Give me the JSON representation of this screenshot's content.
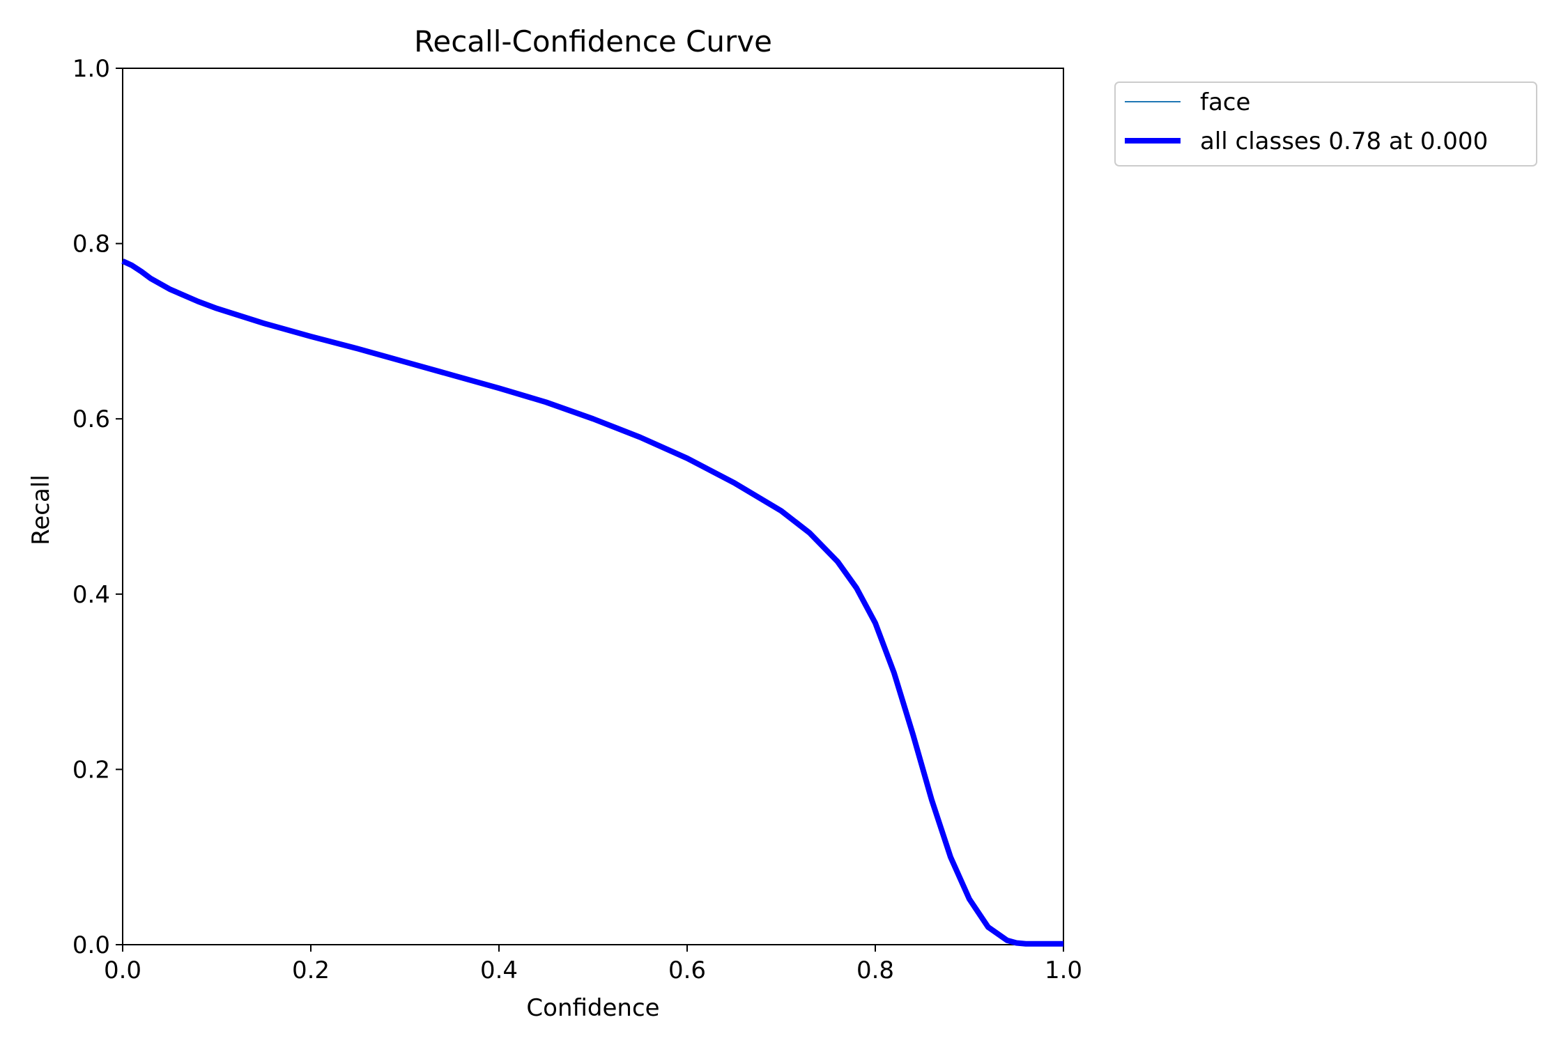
{
  "chart_data": {
    "type": "line",
    "title": "Recall-Confidence Curve",
    "xlabel": "Confidence",
    "ylabel": "Recall",
    "xlim": [
      0,
      1
    ],
    "ylim": [
      0,
      1
    ],
    "xticks": [
      "0.0",
      "0.2",
      "0.4",
      "0.6",
      "0.8",
      "1.0"
    ],
    "yticks": [
      "0.0",
      "0.2",
      "0.4",
      "0.6",
      "0.8",
      "1.0"
    ],
    "grid": false,
    "legend_position": "outside top-right",
    "series": [
      {
        "name": "face",
        "color": "#1f77b4",
        "style": "thin",
        "x": [
          0.0,
          0.01,
          0.02,
          0.03,
          0.05,
          0.08,
          0.1,
          0.15,
          0.2,
          0.25,
          0.3,
          0.35,
          0.4,
          0.45,
          0.5,
          0.55,
          0.6,
          0.65,
          0.7,
          0.73,
          0.76,
          0.78,
          0.8,
          0.82,
          0.84,
          0.86,
          0.88,
          0.9,
          0.92,
          0.94,
          0.95,
          0.96,
          0.98,
          1.0
        ],
        "y": [
          0.78,
          0.775,
          0.768,
          0.76,
          0.748,
          0.734,
          0.726,
          0.709,
          0.694,
          0.68,
          0.665,
          0.65,
          0.635,
          0.619,
          0.6,
          0.579,
          0.555,
          0.527,
          0.495,
          0.47,
          0.437,
          0.407,
          0.367,
          0.31,
          0.24,
          0.165,
          0.1,
          0.052,
          0.02,
          0.005,
          0.002,
          0.001,
          0.001,
          0.001
        ]
      },
      {
        "name": "all classes 0.78 at 0.000",
        "color": "#0000ff",
        "style": "thick",
        "x": [
          0.0,
          0.01,
          0.02,
          0.03,
          0.05,
          0.08,
          0.1,
          0.15,
          0.2,
          0.25,
          0.3,
          0.35,
          0.4,
          0.45,
          0.5,
          0.55,
          0.6,
          0.65,
          0.7,
          0.73,
          0.76,
          0.78,
          0.8,
          0.82,
          0.84,
          0.86,
          0.88,
          0.9,
          0.92,
          0.94,
          0.95,
          0.96,
          0.98,
          1.0
        ],
        "y": [
          0.78,
          0.775,
          0.768,
          0.76,
          0.748,
          0.734,
          0.726,
          0.709,
          0.694,
          0.68,
          0.665,
          0.65,
          0.635,
          0.619,
          0.6,
          0.579,
          0.555,
          0.527,
          0.495,
          0.47,
          0.437,
          0.407,
          0.367,
          0.31,
          0.24,
          0.165,
          0.1,
          0.052,
          0.02,
          0.005,
          0.002,
          0.001,
          0.001,
          0.001
        ]
      }
    ]
  }
}
